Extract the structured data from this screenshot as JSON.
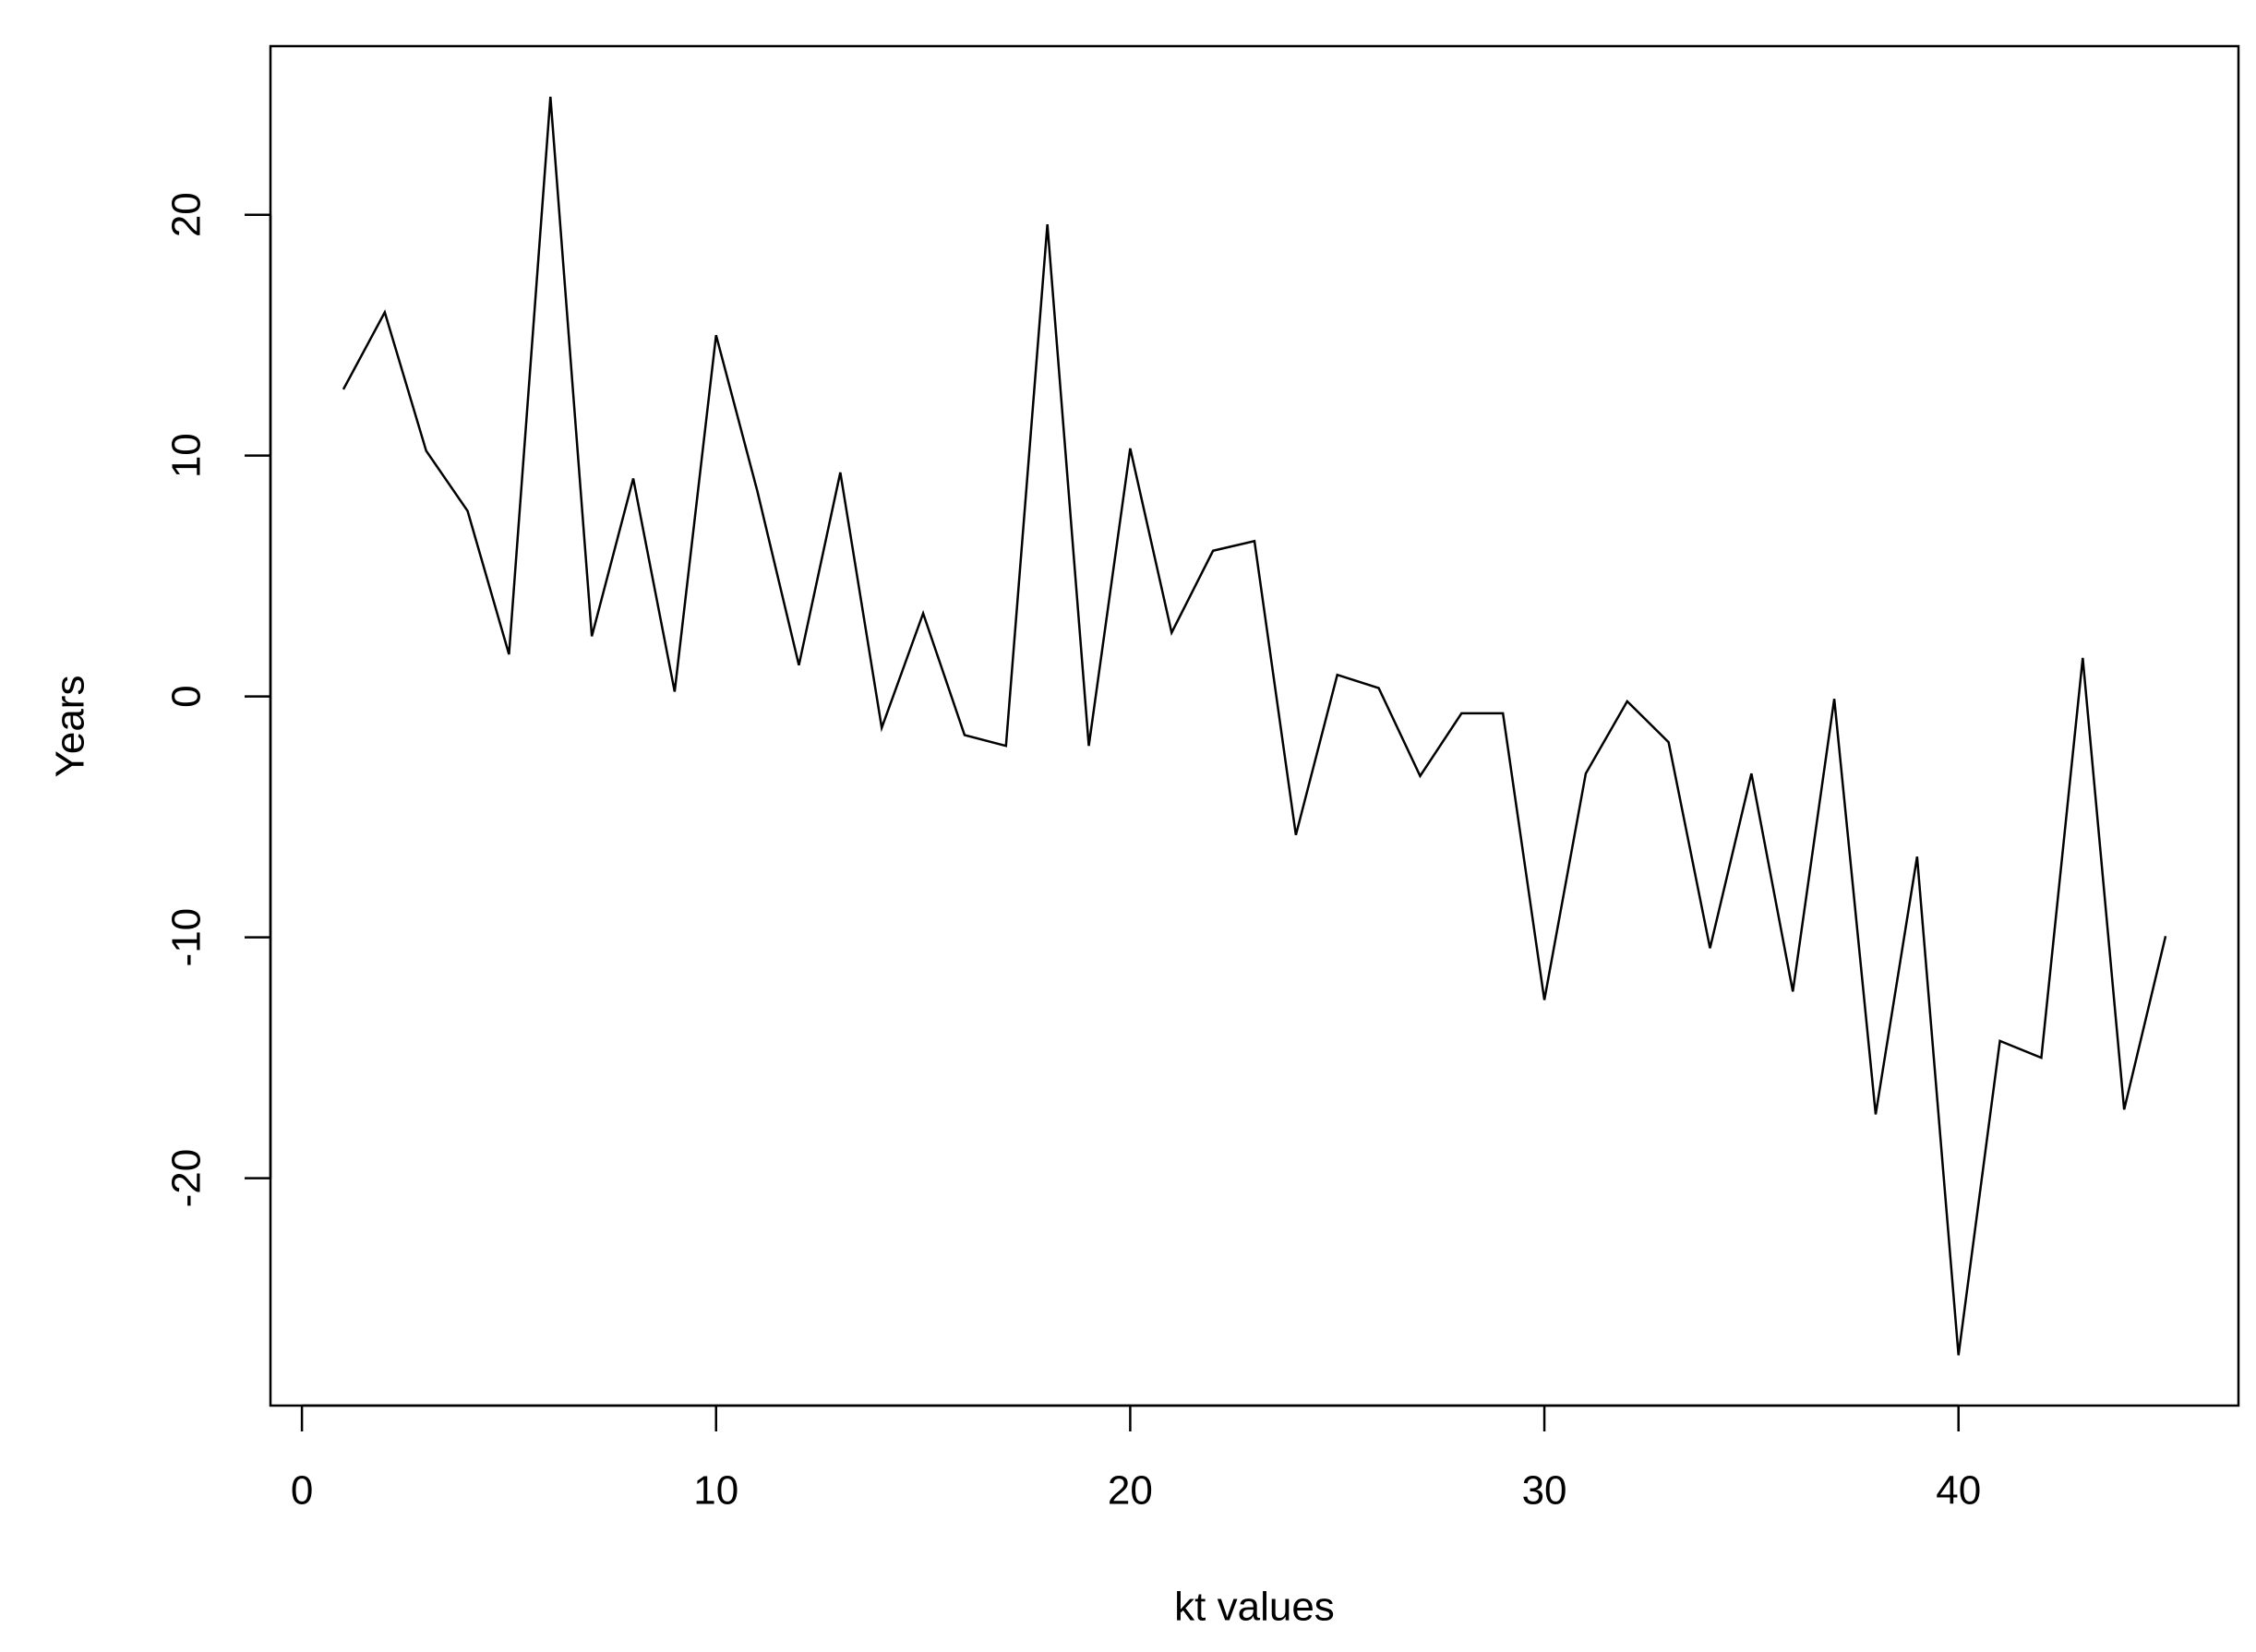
{
  "chart_data": {
    "type": "line",
    "x_label": "kt values",
    "y_label": "Years",
    "x": [
      1,
      2,
      3,
      4,
      5,
      6,
      7,
      8,
      9,
      10,
      11,
      12,
      13,
      14,
      15,
      16,
      17,
      18,
      19,
      20,
      21,
      22,
      23,
      24,
      25,
      26,
      27,
      28,
      29,
      30,
      31,
      32,
      33,
      34,
      35,
      36,
      37,
      38,
      39,
      40,
      41,
      42,
      43,
      44,
      45
    ],
    "values": [
      12.75,
      15.95,
      10.2,
      7.7,
      1.75,
      24.9,
      2.5,
      9.05,
      0.2,
      15.0,
      8.5,
      1.3,
      9.3,
      -1.3,
      3.45,
      -1.6,
      -2.05,
      19.6,
      -2.05,
      10.3,
      2.65,
      6.05,
      6.45,
      -5.75,
      0.9,
      0.35,
      -3.3,
      -0.7,
      -0.7,
      -12.6,
      -3.2,
      -0.2,
      -1.9,
      -10.45,
      -3.2,
      -12.25,
      -0.1,
      -17.35,
      -6.65,
      -27.35,
      -14.3,
      -15.0,
      1.6,
      -17.15,
      -9.95
    ],
    "color": "#000000",
    "xlim": [
      -0.76,
      46.76
    ],
    "xticks": [
      0,
      10,
      20,
      30,
      40
    ],
    "ylim": [
      -29.44,
      27.0
    ],
    "yticks": [
      -20,
      -10,
      0,
      10,
      20
    ]
  }
}
